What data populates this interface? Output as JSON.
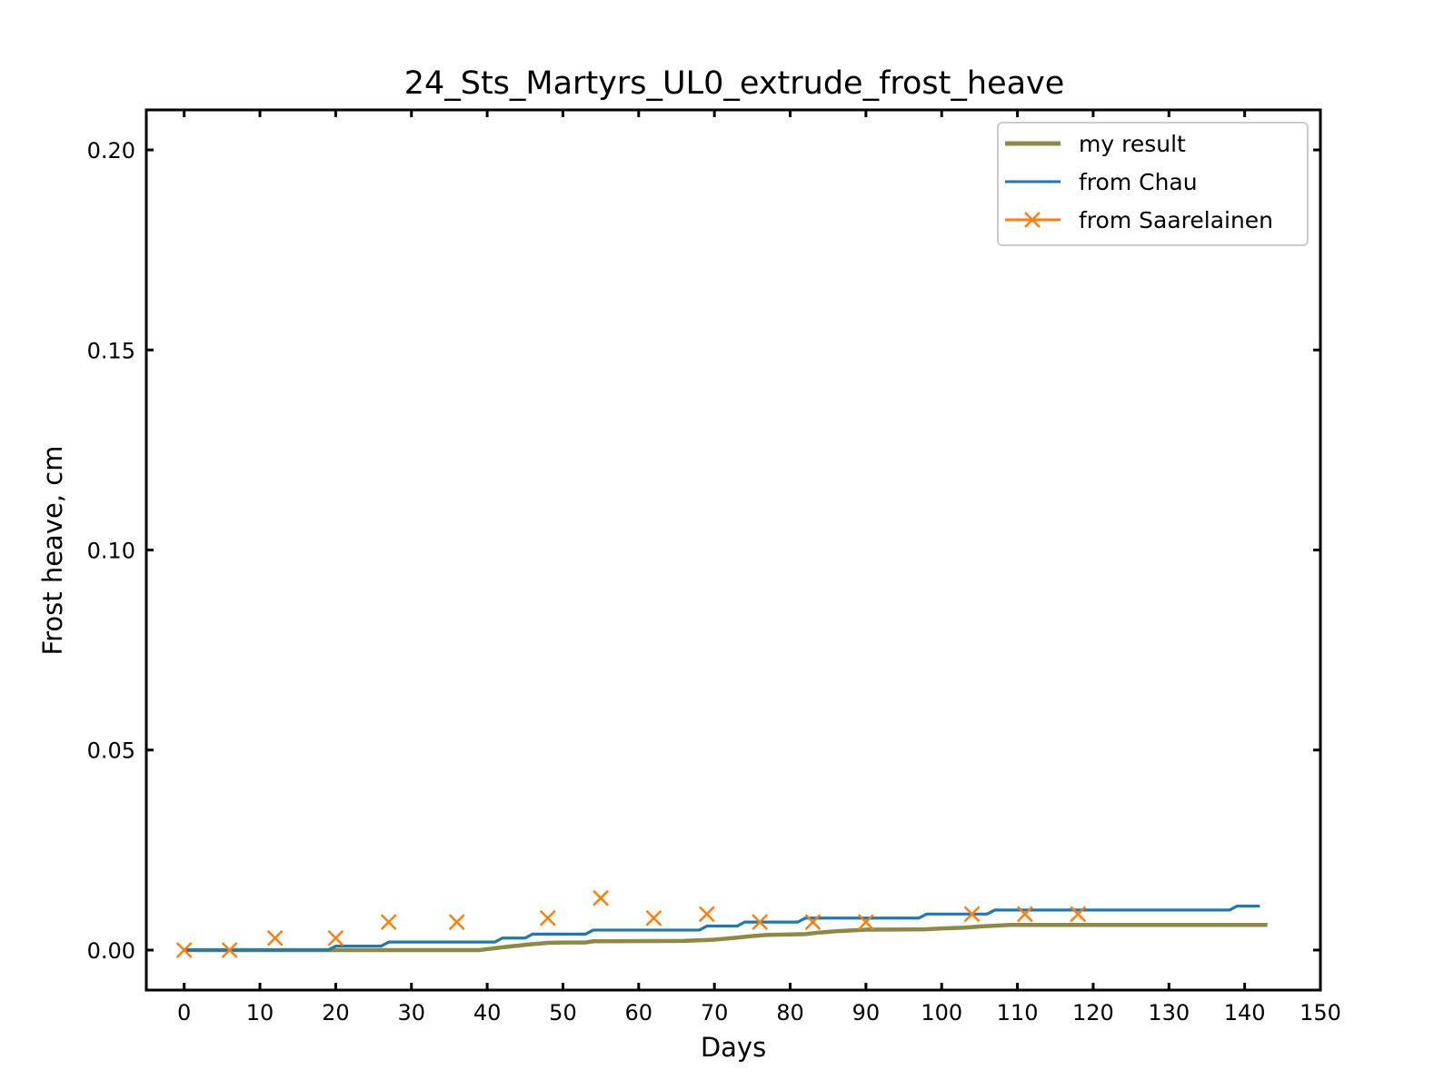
{
  "chart_data": {
    "type": "line",
    "title": "24_Sts_Martyrs_UL0_extrude_frost_heave",
    "xlabel": "Days",
    "ylabel": "Frost heave, cm",
    "xlim": [
      -5,
      150
    ],
    "ylim": [
      -0.01,
      0.21
    ],
    "xticks": [
      0,
      10,
      20,
      30,
      40,
      50,
      60,
      70,
      80,
      90,
      100,
      110,
      120,
      130,
      140,
      150
    ],
    "yticks": [
      0.0,
      0.05,
      0.1,
      0.15,
      0.2
    ],
    "ytick_labels": [
      "0.00",
      "0.05",
      "0.10",
      "0.15",
      "0.20"
    ],
    "grid": false,
    "legend_position": "top-right",
    "series": [
      {
        "name": "my result",
        "color": "#8c8a45",
        "style": "line",
        "x": [
          0,
          39,
          42,
          44,
          46,
          48,
          50,
          53,
          54,
          66,
          70,
          73,
          75,
          77,
          80,
          82,
          84,
          86,
          88,
          90,
          98,
          100,
          103,
          105,
          107,
          109,
          143
        ],
        "y": [
          0,
          0,
          0.0007,
          0.0011,
          0.0015,
          0.0018,
          0.0019,
          0.0019,
          0.0022,
          0.0023,
          0.0026,
          0.0031,
          0.0035,
          0.0038,
          0.0039,
          0.004,
          0.0044,
          0.0047,
          0.0049,
          0.0051,
          0.0052,
          0.0054,
          0.0056,
          0.0059,
          0.0061,
          0.0063,
          0.0063
        ]
      },
      {
        "name": "from Chau",
        "color": "#1f77b4",
        "style": "line",
        "x": [
          0,
          19,
          20,
          26,
          27,
          41,
          42,
          45,
          46,
          53,
          54,
          68,
          69,
          73,
          74,
          81,
          82,
          97,
          98,
          106,
          107,
          138,
          139,
          142
        ],
        "y": [
          0,
          0,
          0.001,
          0.001,
          0.002,
          0.002,
          0.003,
          0.003,
          0.004,
          0.004,
          0.005,
          0.005,
          0.006,
          0.006,
          0.007,
          0.007,
          0.008,
          0.008,
          0.009,
          0.009,
          0.01,
          0.01,
          0.011,
          0.011
        ]
      },
      {
        "name": "from Saarelainen",
        "color": "#ff7f0e",
        "style": "markers",
        "x": [
          0,
          6,
          12,
          20,
          27,
          36,
          48,
          55,
          62,
          69,
          76,
          83,
          90,
          104,
          111,
          118
        ],
        "y": [
          0,
          0,
          0.003,
          0.003,
          0.007,
          0.007,
          0.008,
          0.013,
          0.008,
          0.009,
          0.007,
          0.007,
          0.007,
          0.009,
          0.009,
          0.009
        ]
      }
    ]
  }
}
